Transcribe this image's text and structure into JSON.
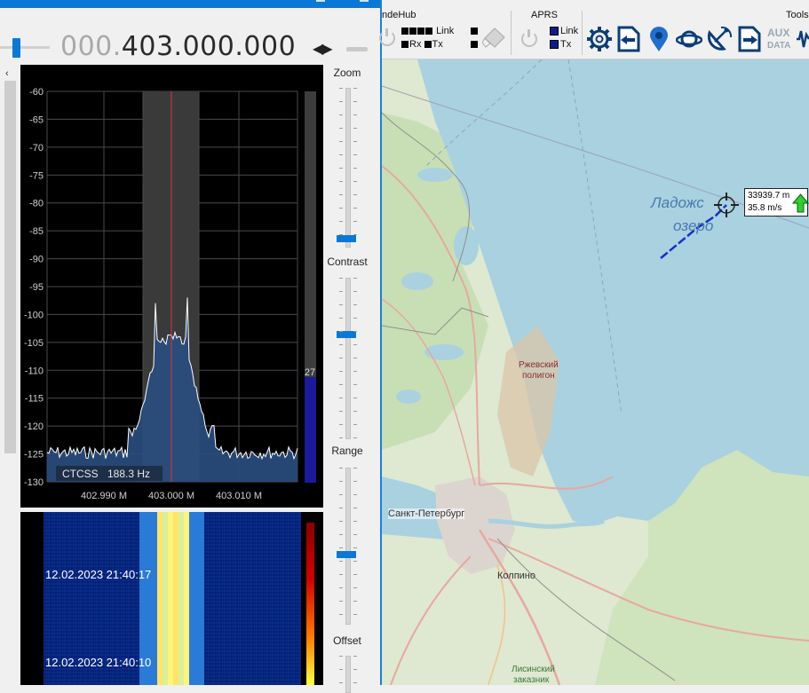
{
  "sdr": {
    "frequency_dim": "000.",
    "frequency_main": "403.000.000",
    "freq_step_arrows": "◀▶",
    "spectrum": {
      "db_ticks": [
        "-60",
        "-65",
        "-70",
        "-75",
        "-80",
        "-85",
        "-90",
        "-95",
        "-100",
        "-105",
        "-110",
        "-115",
        "-120",
        "-125",
        "-130"
      ],
      "freq_ticks": [
        "402.990 M",
        "403.000 M",
        "403.010 M"
      ],
      "ctcss_label": "CTCSS",
      "ctcss_value": "188.3 Hz",
      "signal_level": "27",
      "signal_level_fraction": 0.27
    },
    "waterfall": {
      "timestamps": [
        "12.02.2023 21:40:17",
        "12.02.2023 21:40:10"
      ]
    },
    "controls": {
      "zoom": "Zoom",
      "contrast": "Contrast",
      "range": "Range",
      "offset": "Offset"
    },
    "colors": {
      "accent": "#0a78d7",
      "spectrum_fill": "#2a4e80",
      "center_line": "#e0303a"
    }
  },
  "toolbar": {
    "sondehub": "ndeHub",
    "sondehub_link": "Link",
    "sondehub_rx": "Rx",
    "sondehub_tx": "Tx",
    "aprs": "APRS",
    "aprs_link": "Link",
    "aprs_tx": "Tx",
    "tools": "Tools",
    "aux_line1": "AUX",
    "aux_line2": "DATA",
    "icons": [
      "power-icon",
      "eraser-icon",
      "gear-icon",
      "import-icon",
      "map-pin-icon",
      "planet-icon",
      "satellite-dish-icon",
      "export-icon",
      "aux-data-icon",
      "waveform-icon"
    ]
  },
  "map": {
    "lake_name_1": "Ладожс",
    "lake_name_2": "озеро",
    "polygon_name_1": "Ржевский",
    "polygon_name_2": "полигон",
    "city_spb": "Санкт-Петербург",
    "city_kolpino": "Колпино",
    "reserve_1": "Лисинский",
    "reserve_2": "заказник",
    "target_distance": "33939.7 m",
    "target_speed": "35.8 m/s"
  }
}
